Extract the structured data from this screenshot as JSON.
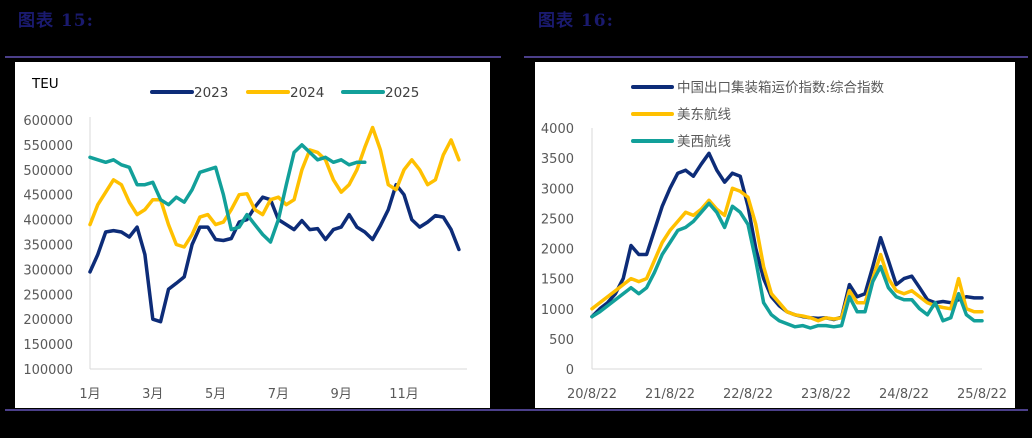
{
  "figures": [
    {
      "title": "图表 15:"
    },
    {
      "title": "图表 16:"
    }
  ],
  "colors": {
    "navy": "#0d2c78",
    "gold": "#ffc000",
    "teal": "#12a09a",
    "axis": "#d9d9d9",
    "title": "#1a1a6e",
    "rule": "#4b3f8a"
  },
  "chart_data": [
    {
      "type": "line",
      "title": "",
      "ylabel": "TEU",
      "xlabel": "",
      "ylim": [
        100000,
        600000
      ],
      "yticks": [
        600000,
        550000,
        500000,
        450000,
        400000,
        350000,
        300000,
        250000,
        200000,
        150000,
        100000
      ],
      "xticks": [
        "1月",
        "3月",
        "5月",
        "7月",
        "9月",
        "11月"
      ],
      "grid": false,
      "legend_position": "top",
      "x_months": [
        1,
        1.25,
        1.5,
        1.75,
        2,
        2.25,
        2.5,
        2.75,
        3,
        3.25,
        3.5,
        3.75,
        4,
        4.25,
        4.5,
        4.75,
        5,
        5.25,
        5.5,
        5.75,
        6,
        6.25,
        6.5,
        6.75,
        7,
        7.25,
        7.5,
        7.75,
        8,
        8.25,
        8.5,
        8.75,
        9,
        9.25,
        9.5,
        9.75,
        10,
        10.25,
        10.5,
        10.75,
        11,
        11.25,
        11.5,
        11.75,
        12,
        12.25,
        12.5,
        12.75
      ],
      "series": [
        {
          "name": "2023",
          "color": "#0d2c78",
          "values": [
            295000,
            330000,
            375000,
            378000,
            375000,
            365000,
            385000,
            330000,
            200000,
            195000,
            260000,
            272000,
            285000,
            350000,
            385000,
            385000,
            360000,
            358000,
            362000,
            395000,
            400000,
            425000,
            445000,
            440000,
            400000,
            390000,
            380000,
            398000,
            380000,
            382000,
            360000,
            380000,
            385000,
            410000,
            385000,
            375000,
            360000,
            388000,
            420000,
            470000,
            450000,
            400000,
            385000,
            395000,
            408000,
            405000,
            380000,
            340000
          ]
        },
        {
          "name": "2024",
          "color": "#ffc000",
          "values": [
            390000,
            430000,
            455000,
            480000,
            470000,
            435000,
            410000,
            420000,
            440000,
            440000,
            390000,
            350000,
            345000,
            370000,
            405000,
            410000,
            390000,
            395000,
            420000,
            450000,
            452000,
            420000,
            410000,
            440000,
            445000,
            430000,
            440000,
            500000,
            540000,
            535000,
            520000,
            480000,
            455000,
            470000,
            500000,
            545000,
            585000,
            540000,
            470000,
            460000,
            500000,
            520000,
            500000,
            470000,
            480000,
            530000,
            560000,
            520000
          ]
        },
        {
          "name": "2025",
          "color": "#12a09a",
          "values": [
            525000,
            520000,
            515000,
            520000,
            510000,
            505000,
            470000,
            470000,
            475000,
            440000,
            430000,
            445000,
            435000,
            460000,
            495000,
            500000,
            505000,
            450000,
            380000,
            385000,
            410000,
            390000,
            370000,
            355000,
            400000,
            470000,
            535000,
            550000,
            535000,
            520000,
            525000,
            515000,
            520000,
            510000,
            515000,
            515000
          ]
        }
      ]
    },
    {
      "type": "line",
      "title": "",
      "xlabel": "",
      "ylabel": "",
      "ylim": [
        0,
        4000
      ],
      "yticks": [
        4000,
        3500,
        3000,
        2500,
        2000,
        1500,
        1000,
        500,
        0
      ],
      "xticks": [
        "20/8/22",
        "21/8/22",
        "22/8/22",
        "23/8/22",
        "24/8/22",
        "25/8/22"
      ],
      "grid": false,
      "legend_position": "top-left",
      "x_years_since_2020_08": [
        0,
        0.1,
        0.2,
        0.3,
        0.4,
        0.5,
        0.6,
        0.7,
        0.8,
        0.9,
        1.0,
        1.1,
        1.2,
        1.3,
        1.4,
        1.5,
        1.6,
        1.7,
        1.8,
        1.9,
        2.0,
        2.1,
        2.2,
        2.3,
        2.4,
        2.5,
        2.6,
        2.7,
        2.8,
        2.9,
        3.0,
        3.1,
        3.2,
        3.3,
        3.4,
        3.5,
        3.6,
        3.7,
        3.8,
        3.9,
        4.0,
        4.1,
        4.2,
        4.3,
        4.4,
        4.5,
        4.6,
        4.7,
        4.8,
        4.9,
        5.0
      ],
      "series": [
        {
          "name": "中国出口集装箱运价指数:综合指数",
          "color": "#0d2c78",
          "values": [
            870,
            1000,
            1100,
            1250,
            1500,
            2050,
            1900,
            1900,
            2300,
            2700,
            3000,
            3250,
            3300,
            3200,
            3400,
            3580,
            3300,
            3100,
            3250,
            3200,
            2700,
            2000,
            1500,
            1200,
            1050,
            950,
            900,
            870,
            850,
            840,
            850,
            820,
            860,
            1400,
            1200,
            1250,
            1700,
            2180,
            1800,
            1400,
            1500,
            1540,
            1350,
            1150,
            1100,
            1120,
            1100,
            1150,
            1200,
            1180,
            1180
          ]
        },
        {
          "name": "美东航线",
          "color": "#ffc000",
          "values": [
            1000,
            1100,
            1200,
            1300,
            1400,
            1500,
            1450,
            1500,
            1800,
            2100,
            2300,
            2450,
            2600,
            2550,
            2650,
            2800,
            2650,
            2550,
            3000,
            2950,
            2850,
            2400,
            1700,
            1250,
            1100,
            950,
            900,
            880,
            850,
            800,
            850,
            830,
            850,
            1300,
            1100,
            1100,
            1500,
            1900,
            1500,
            1300,
            1250,
            1300,
            1200,
            1100,
            1050,
            1020,
            1000,
            1500,
            1000,
            950,
            950
          ]
        },
        {
          "name": "美西航线",
          "color": "#12a09a",
          "values": [
            870,
            950,
            1050,
            1150,
            1250,
            1350,
            1250,
            1350,
            1600,
            1900,
            2100,
            2300,
            2350,
            2450,
            2600,
            2750,
            2600,
            2350,
            2700,
            2600,
            2400,
            1800,
            1100,
            900,
            800,
            750,
            700,
            720,
            680,
            720,
            720,
            700,
            720,
            1200,
            950,
            950,
            1450,
            1700,
            1350,
            1200,
            1150,
            1150,
            1000,
            900,
            1100,
            800,
            850,
            1250,
            900,
            800,
            800
          ]
        }
      ]
    }
  ]
}
